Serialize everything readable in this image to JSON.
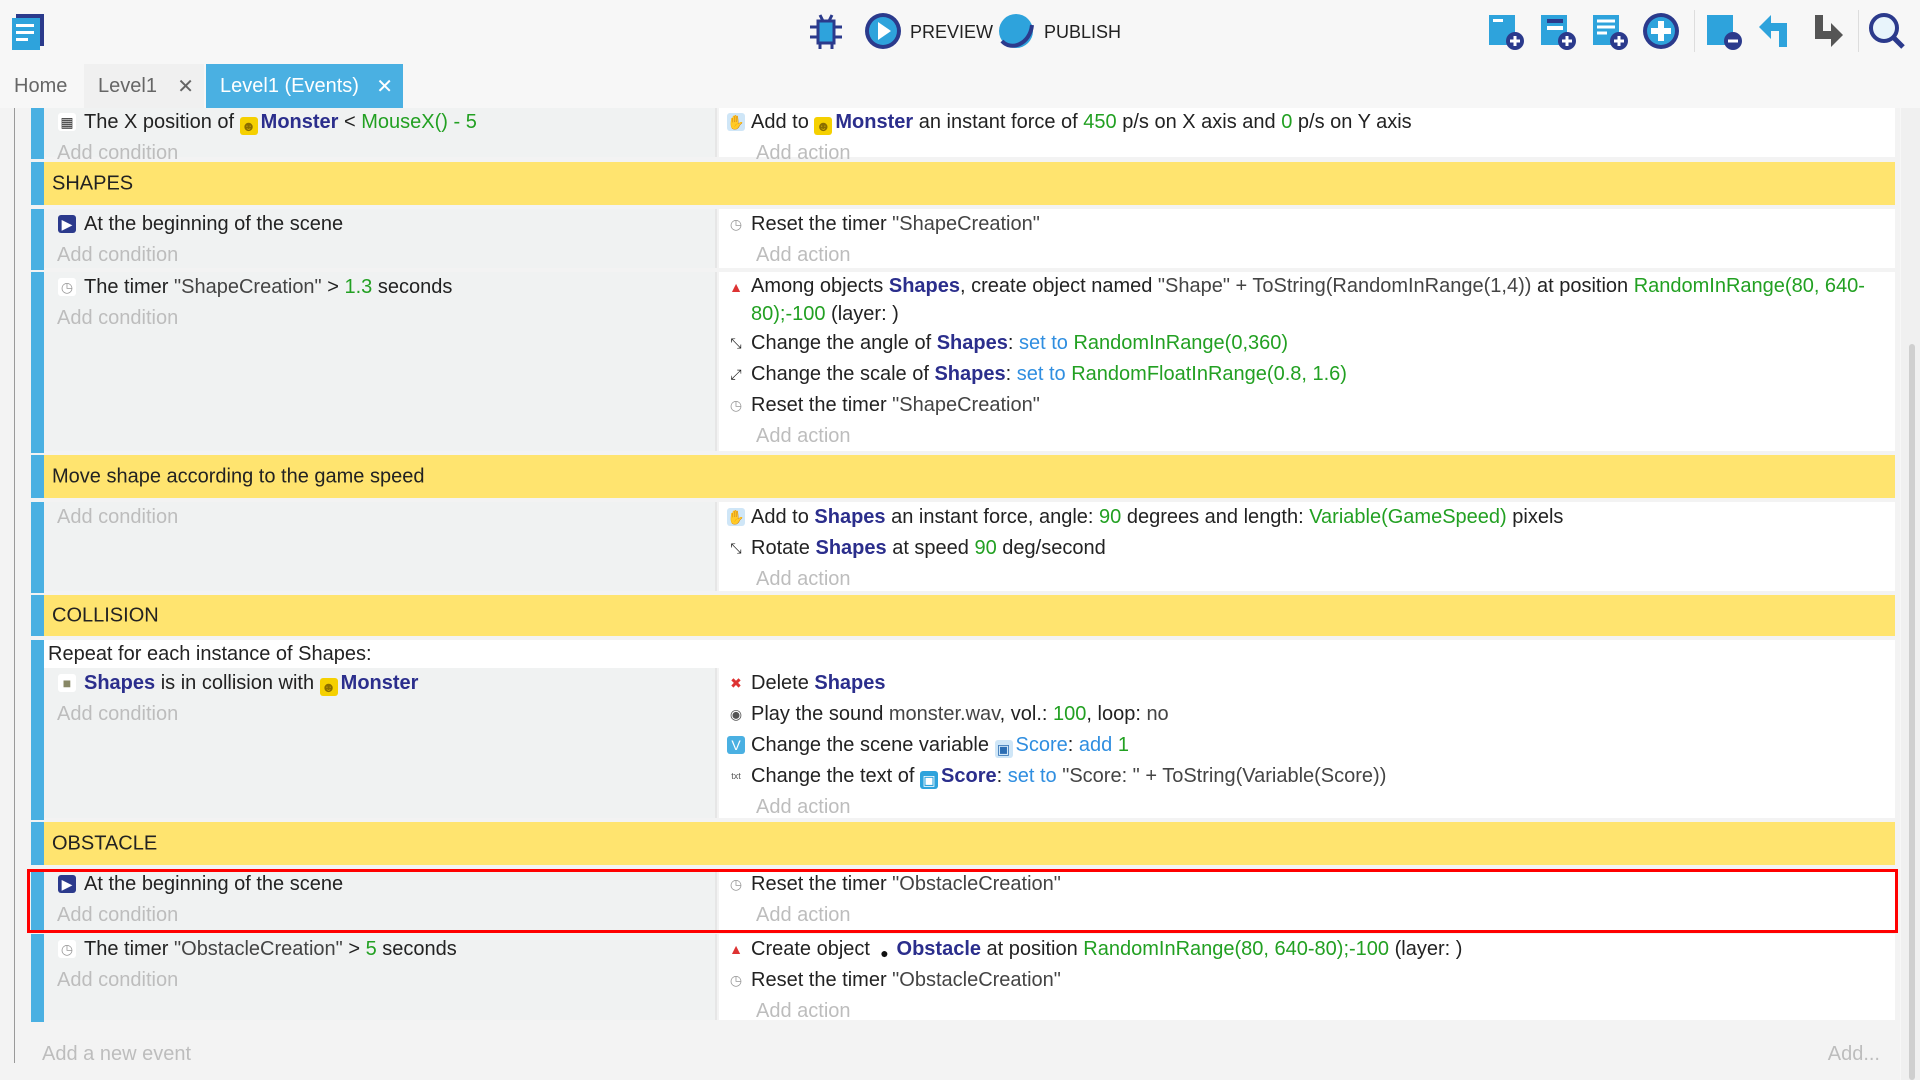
{
  "toolbar": {
    "preview_label": "PREVIEW",
    "publish_label": "PUBLISH",
    "icons": [
      "project-manager-icon",
      "debugger-icon",
      "preview-icon",
      "publish-icon",
      "add-event-icon",
      "add-subevent-icon",
      "add-comment-icon",
      "add-more-icon",
      "delete-icon",
      "undo-icon",
      "redo-icon",
      "search-icon"
    ]
  },
  "tabs": [
    {
      "label": "Home",
      "closable": false,
      "active": false
    },
    {
      "label": "Level1",
      "closable": true,
      "active": false
    },
    {
      "label": "Level1 (Events)",
      "closable": true,
      "active": true
    }
  ],
  "tab_close_glyph": "✕",
  "placeholders": {
    "condition": "Add condition",
    "action": "Add action",
    "new_event": "Add a new event",
    "add_more": "Add..."
  },
  "colors": {
    "group": "#ffe46f",
    "accent": "#4ab0e2",
    "object": "#2b2e8c",
    "number": "#22a022",
    "keyword": "#2f8ee0",
    "highlight": "#ff0000"
  },
  "events": [
    {
      "type": "event",
      "conditions": [
        {
          "icon": "position-icon",
          "segs": [
            [
              "The X position of ",
              ""
            ],
            [
              "monster",
              "icon"
            ],
            [
              "Monster",
              "obj"
            ],
            [
              " < ",
              ""
            ],
            [
              "MouseX() - 5",
              "num"
            ]
          ]
        }
      ],
      "actions": [
        {
          "icon": "force-icon",
          "segs": [
            [
              "Add to ",
              ""
            ],
            [
              "monster",
              "icon"
            ],
            [
              "Monster",
              "obj"
            ],
            [
              " an instant force of ",
              ""
            ],
            [
              "450",
              "num"
            ],
            [
              " p/s on X axis and ",
              ""
            ],
            [
              "0",
              "num"
            ],
            [
              " p/s on Y axis",
              ""
            ]
          ]
        }
      ]
    },
    {
      "type": "group",
      "title": "SHAPES"
    },
    {
      "type": "event",
      "conditions": [
        {
          "icon": "scene-start-icon",
          "segs": [
            [
              "At the beginning of the scene",
              ""
            ]
          ]
        }
      ],
      "actions": [
        {
          "icon": "timer-icon",
          "segs": [
            [
              "Reset the timer ",
              ""
            ],
            [
              "\"ShapeCreation\"",
              "str"
            ]
          ]
        }
      ]
    },
    {
      "type": "event",
      "conditions": [
        {
          "icon": "timer-icon",
          "segs": [
            [
              "The timer ",
              ""
            ],
            [
              "\"ShapeCreation\"",
              "str"
            ],
            [
              " > ",
              ""
            ],
            [
              "1.3",
              "num"
            ],
            [
              " seconds",
              ""
            ]
          ]
        }
      ],
      "actions": [
        {
          "icon": "create-object-icon",
          "wrap": true,
          "segs": [
            [
              "Among objects ",
              ""
            ],
            [
              "Shapes",
              "obj"
            ],
            [
              ", create object named ",
              ""
            ],
            [
              "\"Shape\" + ToString(RandomInRange(1,4))",
              "str"
            ],
            [
              " at position ",
              ""
            ],
            [
              "RandomInRange(80, 640-80);-100",
              "num"
            ],
            [
              " (layer: )",
              ""
            ]
          ]
        },
        {
          "icon": "angle-icon",
          "segs": [
            [
              "Change the angle of ",
              ""
            ],
            [
              "Shapes",
              "obj"
            ],
            [
              ": ",
              ""
            ],
            [
              "set to",
              "kw"
            ],
            [
              " ",
              ""
            ],
            [
              "RandomInRange(0,360)",
              "num"
            ]
          ]
        },
        {
          "icon": "scale-icon",
          "segs": [
            [
              "Change the scale of ",
              ""
            ],
            [
              "Shapes",
              "obj"
            ],
            [
              ": ",
              ""
            ],
            [
              "set to",
              "kw"
            ],
            [
              " ",
              ""
            ],
            [
              "RandomFloatInRange(0.8, 1.6)",
              "num"
            ]
          ]
        },
        {
          "icon": "timer-icon",
          "segs": [
            [
              "Reset the timer ",
              ""
            ],
            [
              "\"ShapeCreation\"",
              "str"
            ]
          ]
        }
      ]
    },
    {
      "type": "group",
      "title": "Move shape according to the game speed"
    },
    {
      "type": "event",
      "conditions": [],
      "actions": [
        {
          "icon": "force-icon",
          "segs": [
            [
              "Add to ",
              ""
            ],
            [
              "Shapes",
              "obj"
            ],
            [
              " an instant force, angle: ",
              ""
            ],
            [
              "90",
              "num"
            ],
            [
              " degrees and length: ",
              ""
            ],
            [
              "Variable(GameSpeed)",
              "num"
            ],
            [
              " pixels",
              ""
            ]
          ]
        },
        {
          "icon": "rotate-icon",
          "segs": [
            [
              "Rotate ",
              ""
            ],
            [
              "Shapes",
              "obj"
            ],
            [
              " at speed ",
              ""
            ],
            [
              "90",
              "num"
            ],
            [
              " deg/second",
              ""
            ]
          ]
        }
      ]
    },
    {
      "type": "group",
      "title": "COLLISION"
    },
    {
      "type": "event",
      "repeat": "Repeat for each instance of Shapes:",
      "conditions": [
        {
          "icon": "collision-icon",
          "segs": [
            [
              "Shapes",
              "obj"
            ],
            [
              " is in collision with ",
              ""
            ],
            [
              "monster",
              "icon"
            ],
            [
              "Monster",
              "obj"
            ]
          ]
        }
      ],
      "actions": [
        {
          "icon": "delete-icon",
          "segs": [
            [
              "Delete ",
              ""
            ],
            [
              "Shapes",
              "obj"
            ]
          ]
        },
        {
          "icon": "sound-icon",
          "segs": [
            [
              "Play the sound ",
              ""
            ],
            [
              "monster.wav",
              "str"
            ],
            [
              ", vol.: ",
              ""
            ],
            [
              "100",
              "num"
            ],
            [
              ", loop: ",
              ""
            ],
            [
              "no",
              "str"
            ]
          ]
        },
        {
          "icon": "variable-icon",
          "segs": [
            [
              "Change the scene variable ",
              ""
            ],
            [
              "var",
              "icon"
            ],
            [
              "Score",
              "kw"
            ],
            [
              ": ",
              ""
            ],
            [
              "add",
              "kw"
            ],
            [
              " ",
              ""
            ],
            [
              "1",
              "num"
            ]
          ]
        },
        {
          "icon": "text-icon",
          "segs": [
            [
              "Change the text of ",
              ""
            ],
            [
              "text",
              "icon"
            ],
            [
              "Score",
              "obj"
            ],
            [
              ": ",
              ""
            ],
            [
              "set to",
              "kw"
            ],
            [
              " ",
              ""
            ],
            [
              "\"Score: \" + ToString(Variable(Score))",
              "str"
            ]
          ]
        }
      ]
    },
    {
      "type": "group",
      "title": "OBSTACLE"
    },
    {
      "type": "event",
      "selected": true,
      "conditions": [
        {
          "icon": "scene-start-icon",
          "segs": [
            [
              "At the beginning of the scene",
              ""
            ]
          ]
        }
      ],
      "actions": [
        {
          "icon": "timer-icon",
          "segs": [
            [
              "Reset the timer ",
              ""
            ],
            [
              "\"ObstacleCreation\"",
              "str"
            ]
          ]
        }
      ]
    },
    {
      "type": "event",
      "conditions": [
        {
          "icon": "timer-icon",
          "segs": [
            [
              "The timer ",
              ""
            ],
            [
              "\"ObstacleCreation\"",
              "str"
            ],
            [
              " > ",
              ""
            ],
            [
              "5",
              "num"
            ],
            [
              " seconds",
              ""
            ]
          ]
        }
      ],
      "actions": [
        {
          "icon": "create-object-icon",
          "segs": [
            [
              "Create object ",
              ""
            ],
            [
              "bomb",
              "icon"
            ],
            [
              "Obstacle",
              "obj"
            ],
            [
              " at position ",
              ""
            ],
            [
              "RandomInRange(80, 640-80);-100",
              "num"
            ],
            [
              " (layer: )",
              ""
            ]
          ]
        },
        {
          "icon": "timer-icon",
          "segs": [
            [
              "Reset the timer ",
              ""
            ],
            [
              "\"ObstacleCreation\"",
              "str"
            ]
          ]
        }
      ]
    }
  ]
}
